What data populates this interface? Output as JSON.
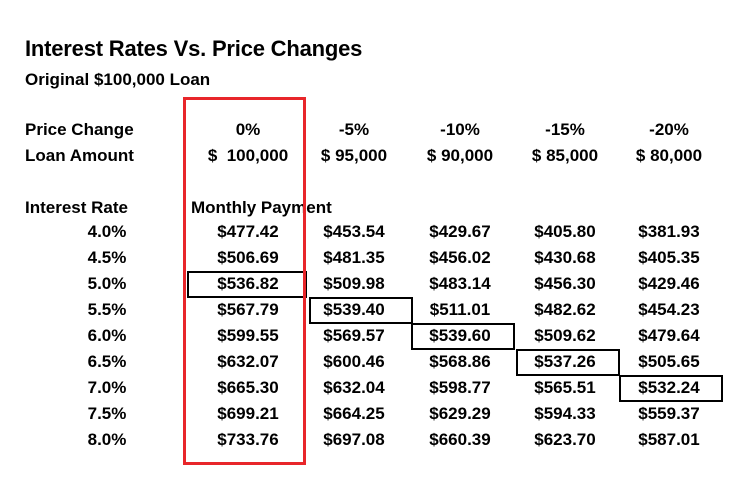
{
  "title": "Interest Rates Vs. Price Changes",
  "subtitle": "Original $100,000 Loan",
  "price_change_label": "Price Change",
  "loan_amount_label": "Loan Amount",
  "interest_rate_label": "Interest Rate",
  "monthly_payment_label": "Monthly Payment",
  "columns": [
    {
      "price_change": "0%",
      "loan_amount": "$  100,000"
    },
    {
      "price_change": "-5%",
      "loan_amount": "$ 95,000"
    },
    {
      "price_change": "-10%",
      "loan_amount": "$ 90,000"
    },
    {
      "price_change": "-15%",
      "loan_amount": "$ 85,000"
    },
    {
      "price_change": "-20%",
      "loan_amount": "$ 80,000"
    }
  ],
  "rows": [
    {
      "rate": "4.0%",
      "payments": [
        "$477.42",
        "$453.54",
        "$429.67",
        "$405.80",
        "$381.93"
      ]
    },
    {
      "rate": "4.5%",
      "payments": [
        "$506.69",
        "$481.35",
        "$456.02",
        "$430.68",
        "$405.35"
      ]
    },
    {
      "rate": "5.0%",
      "payments": [
        "$536.82",
        "$509.98",
        "$483.14",
        "$456.30",
        "$429.46"
      ]
    },
    {
      "rate": "5.5%",
      "payments": [
        "$567.79",
        "$539.40",
        "$511.01",
        "$482.62",
        "$454.23"
      ]
    },
    {
      "rate": "6.0%",
      "payments": [
        "$599.55",
        "$569.57",
        "$539.60",
        "$509.62",
        "$479.64"
      ]
    },
    {
      "rate": "6.5%",
      "payments": [
        "$632.07",
        "$600.46",
        "$568.86",
        "$537.26",
        "$505.65"
      ]
    },
    {
      "rate": "7.0%",
      "payments": [
        "$665.30",
        "$632.04",
        "$598.77",
        "$565.51",
        "$532.24"
      ]
    },
    {
      "rate": "7.5%",
      "payments": [
        "$699.21",
        "$664.25",
        "$629.29",
        "$594.33",
        "$559.37"
      ]
    },
    {
      "rate": "8.0%",
      "payments": [
        "$733.76",
        "$697.08",
        "$660.39",
        "$623.70",
        "$587.01"
      ]
    }
  ],
  "highlighted_cells": [
    {
      "row": 2,
      "col": 0
    },
    {
      "row": 3,
      "col": 1
    },
    {
      "row": 4,
      "col": 2
    },
    {
      "row": 5,
      "col": 3
    },
    {
      "row": 6,
      "col": 4
    }
  ],
  "highlighted_column": 0,
  "highlight_color": "#e8262a"
}
